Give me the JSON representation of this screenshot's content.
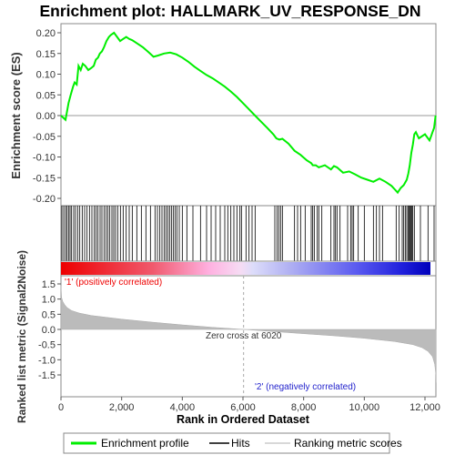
{
  "chart_data": [
    {
      "type": "line",
      "title": "Enrichment plot: HALLMARK_UV_RESPONSE_DN",
      "ylabel": "Enrichment score (ES)",
      "ylim": [
        -0.2,
        0.22
      ],
      "yticks": [
        0.2,
        0.15,
        0.1,
        0.05,
        0.0,
        -0.05,
        -0.1,
        -0.15,
        -0.2
      ],
      "ytick_labels": [
        "0.20",
        "0.15",
        "0.10",
        "0.05",
        "0.00",
        "-0.05",
        "-0.10",
        "-0.15",
        "-0.20"
      ],
      "series": [
        {
          "name": "Enrichment profile",
          "color": "#00ee00",
          "x": [
            0,
            150,
            250,
            320,
            400,
            450,
            520,
            580,
            650,
            720,
            800,
            900,
            1000,
            1080,
            1150,
            1220,
            1280,
            1350,
            1420,
            1500,
            1580,
            1650,
            1750,
            1850,
            1950,
            2050,
            2150,
            2250,
            2350,
            2500,
            2700,
            2900,
            3050,
            3200,
            3400,
            3600,
            3800,
            4000,
            4200,
            4400,
            4600,
            4800,
            5000,
            5200,
            5400,
            5600,
            5800,
            6000,
            6200,
            6400,
            6600,
            6800,
            7000,
            7100,
            7200,
            7300,
            7500,
            7700,
            7900,
            8100,
            8250,
            8300,
            8400,
            8500,
            8700,
            8900,
            9000,
            9100,
            9300,
            9500,
            9700,
            9900,
            10100,
            10300,
            10500,
            10700,
            10900,
            11000,
            11100,
            11200,
            11300,
            11400,
            11450,
            11500,
            11550,
            11600,
            11650,
            11700,
            11800,
            12000,
            12100,
            12150,
            12200,
            12250,
            12300,
            12350
          ],
          "y": [
            0.0,
            -0.01,
            0.03,
            0.05,
            0.07,
            0.08,
            0.075,
            0.12,
            0.11,
            0.125,
            0.12,
            0.11,
            0.115,
            0.12,
            0.135,
            0.14,
            0.15,
            0.155,
            0.165,
            0.18,
            0.19,
            0.195,
            0.2,
            0.19,
            0.18,
            0.185,
            0.19,
            0.185,
            0.182,
            0.175,
            0.165,
            0.152,
            0.142,
            0.145,
            0.15,
            0.152,
            0.148,
            0.14,
            0.13,
            0.118,
            0.108,
            0.098,
            0.09,
            0.08,
            0.07,
            0.058,
            0.045,
            0.03,
            0.015,
            0.0,
            -0.015,
            -0.03,
            -0.045,
            -0.055,
            -0.058,
            -0.056,
            -0.068,
            -0.085,
            -0.095,
            -0.108,
            -0.115,
            -0.12,
            -0.12,
            -0.125,
            -0.12,
            -0.13,
            -0.122,
            -0.125,
            -0.138,
            -0.135,
            -0.142,
            -0.15,
            -0.155,
            -0.16,
            -0.152,
            -0.16,
            -0.17,
            -0.178,
            -0.186,
            -0.175,
            -0.168,
            -0.155,
            -0.14,
            -0.12,
            -0.09,
            -0.07,
            -0.045,
            -0.04,
            -0.055,
            -0.045,
            -0.055,
            -0.06,
            -0.05,
            -0.04,
            -0.03,
            0.0
          ]
        }
      ]
    },
    {
      "type": "heatmap",
      "name": "hits-and-rank-colorbar",
      "hit_ranks": [
        30,
        90,
        150,
        200,
        250,
        300,
        350,
        420,
        480,
        550,
        620,
        700,
        780,
        860,
        940,
        1020,
        1100,
        1160,
        1220,
        1290,
        1350,
        1420,
        1490,
        1550,
        1610,
        1680,
        1740,
        1800,
        1870,
        1960,
        2050,
        2150,
        2250,
        2350,
        2500,
        2650,
        2800,
        2950,
        3100,
        3180,
        3260,
        3330,
        3400,
        3460,
        3520,
        3580,
        3640,
        3700,
        3760,
        3820,
        3900,
        4000,
        4150,
        4350,
        4600,
        4800,
        4950,
        5100,
        5250,
        5400,
        5500,
        5600,
        5700,
        5800,
        5900,
        5950,
        6100,
        6200,
        6300,
        6400,
        7050,
        7120,
        7180,
        7240,
        7300,
        7700,
        7800,
        7900,
        8050,
        8250,
        8300,
        8350,
        8450,
        8500,
        8600,
        8900,
        9000,
        9050,
        9100,
        9200,
        9450,
        9550,
        9600,
        9650,
        9800,
        10000,
        10300,
        10400,
        10500,
        10600,
        11050,
        11150,
        11250,
        11300,
        11350,
        11400,
        11450,
        11480,
        11510,
        11540,
        11570,
        11600,
        11650,
        11850,
        12100,
        12300
      ]
    },
    {
      "type": "area",
      "ylabel": "Ranked list metric (Signal2Noise)",
      "xlabel": "Rank in Ordered Dataset",
      "xlim": [
        0,
        12500
      ],
      "ylim": [
        -1.5,
        1.5
      ],
      "xticks": [
        0,
        2000,
        4000,
        6000,
        8000,
        10000,
        12000
      ],
      "xtick_labels": [
        "0",
        "2,000",
        "4,000",
        "6,000",
        "8,000",
        "10,000",
        "12,000"
      ],
      "yticks": [
        1.5,
        1.0,
        0.5,
        0.0,
        -0.5,
        -1.0,
        -1.5
      ],
      "ytick_labels": [
        "1.5",
        "1.0",
        "0.5",
        "0.0",
        "-0.5",
        "-1.0",
        "-1.5"
      ],
      "series": [
        {
          "name": "Ranking metric scores",
          "color": "#bbbbbb",
          "x": [
            0,
            20,
            60,
            120,
            200,
            350,
            600,
            1000,
            2000,
            3000,
            4000,
            5000,
            6020,
            7000,
            8000,
            9000,
            10000,
            11000,
            11600,
            11900,
            12100,
            12250,
            12320,
            12360,
            12370
          ],
          "y": [
            1.45,
            1.05,
            0.92,
            0.82,
            0.72,
            0.62,
            0.54,
            0.46,
            0.34,
            0.24,
            0.15,
            0.07,
            0.0,
            -0.07,
            -0.14,
            -0.21,
            -0.29,
            -0.4,
            -0.5,
            -0.6,
            -0.72,
            -0.9,
            -1.15,
            -1.5,
            -1.75
          ]
        }
      ],
      "annotations": {
        "zero_cross": "Zero cross at 6020",
        "zero_cross_rank": 6020,
        "positive_label": "'1' (positively correlated)",
        "negative_label": "'2' (negatively correlated)",
        "positive_color": "#ff0000",
        "negative_color": "#0000ff"
      }
    }
  ],
  "legend": {
    "items": [
      {
        "label": "Enrichment profile",
        "color": "#00ee00"
      },
      {
        "label": "Hits",
        "color": "#000000"
      },
      {
        "label": "Ranking metric scores",
        "color": "#bbbbbb"
      }
    ]
  }
}
